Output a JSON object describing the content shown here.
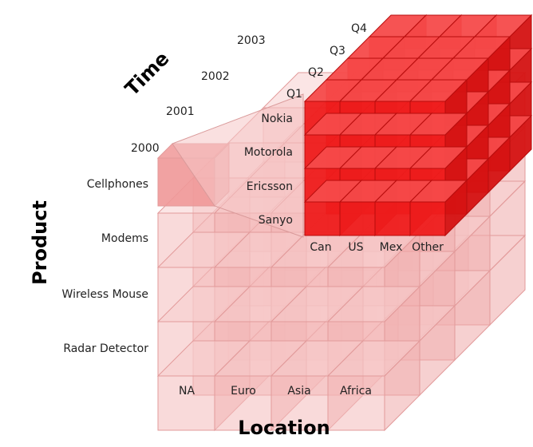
{
  "axes": {
    "time": {
      "title": "Time",
      "years": [
        "2000",
        "2001",
        "2002",
        "2003"
      ],
      "quarters": [
        "Q1",
        "Q2",
        "Q3",
        "Q4"
      ]
    },
    "product": {
      "title": "Product",
      "categories": [
        "Cellphones",
        "Modems",
        "Wireless Mouse",
        "Radar Detector"
      ],
      "sub_categories": [
        "Nokia",
        "Motorola",
        "Ericsson",
        "Sanyo"
      ]
    },
    "location": {
      "title": "Location",
      "regions": [
        "NA",
        "Euro",
        "Asia",
        "Africa"
      ],
      "sub_regions": [
        "Can",
        "US",
        "Mex",
        "Other"
      ]
    }
  },
  "colors": {
    "outer_cube_face": "#f4bcbc",
    "outer_cube_top": "#f8d0d0",
    "outer_cube_side": "#eeaaaa",
    "outer_cube_edge": "#e29a9a",
    "inner_cube_face": "#ee1c1c",
    "inner_cube_top": "#f64a4a",
    "inner_cube_side": "#d41212",
    "inner_cube_edge": "#b80c0c",
    "highlight_cell": "#f09898"
  }
}
